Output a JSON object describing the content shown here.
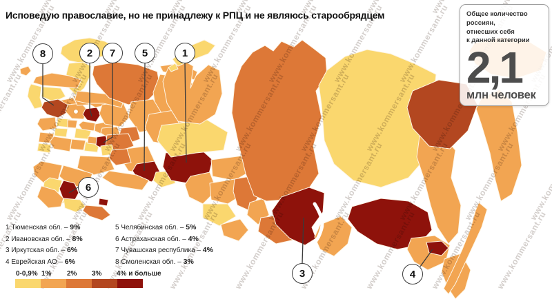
{
  "title": "Исповедую православие, но не принадлежу к РПЦ и не являюсь старообрядцем",
  "watermark": "www.kommersant.ru",
  "info_box": {
    "caption": "Общее количество россиян,\nотнесших себя\nк данной категории",
    "value": "2,1",
    "unit": "млн человек"
  },
  "palette": [
    "#FAD76E",
    "#F2A552",
    "#DD7837",
    "#B34720",
    "#8E120B"
  ],
  "callouts": [
    {
      "num": "1"
    },
    {
      "num": "2"
    },
    {
      "num": "3"
    },
    {
      "num": "4"
    },
    {
      "num": "5"
    },
    {
      "num": "6"
    },
    {
      "num": "7"
    },
    {
      "num": "8"
    }
  ],
  "ranked": [
    {
      "prefix": "1 Тюменская обл. – ",
      "value": "9%"
    },
    {
      "prefix": "2 Ивановская обл. – ",
      "value": "8%"
    },
    {
      "prefix": "3 Иркутская обл. – ",
      "value": "6%"
    },
    {
      "prefix": "4 Еврейская АО – ",
      "value": "6%"
    },
    {
      "prefix": "5 Челябинская обл. – ",
      "value": "5%"
    },
    {
      "prefix": "6 Астраханская обл. – ",
      "value": "4%"
    },
    {
      "prefix": "7 Чувашская республика – ",
      "value": "4%"
    },
    {
      "prefix": "8 Смоленская обл. – ",
      "value": "3%"
    }
  ],
  "scale": {
    "labels": [
      "0-0,9%",
      "1%",
      "2%",
      "3%",
      "4% и больше"
    ]
  },
  "map": {
    "regions": [
      {
        "id": "kaliningrad",
        "category": 1
      },
      {
        "id": "murmansk",
        "category": 0
      },
      {
        "id": "karelia",
        "category": 0
      },
      {
        "id": "leningrad",
        "category": 1
      },
      {
        "id": "novgorod",
        "category": 0
      },
      {
        "id": "pskov",
        "category": 0
      },
      {
        "id": "tver",
        "category": 1
      },
      {
        "id": "smolensk",
        "category": 3
      },
      {
        "id": "moscow_obl",
        "category": 1
      },
      {
        "id": "yaroslavl",
        "category": 1
      },
      {
        "id": "kostroma",
        "category": 1
      },
      {
        "id": "ivanovo",
        "category": 4
      },
      {
        "id": "vladimir",
        "category": 1
      },
      {
        "id": "nizhny",
        "category": 1
      },
      {
        "id": "kaluga",
        "category": 0
      },
      {
        "id": "bryansk",
        "category": 1
      },
      {
        "id": "orel",
        "category": 0
      },
      {
        "id": "tula",
        "category": 1
      },
      {
        "id": "ryazan",
        "category": 0
      },
      {
        "id": "kursk",
        "category": 1
      },
      {
        "id": "voronezh",
        "category": 1
      },
      {
        "id": "belgorod",
        "category": 0
      },
      {
        "id": "tambov",
        "category": 1
      },
      {
        "id": "penza",
        "category": 0
      },
      {
        "id": "mordovia",
        "category": 1
      },
      {
        "id": "chuvashia",
        "category": 4
      },
      {
        "id": "mari",
        "category": 1
      },
      {
        "id": "kirov",
        "category": 1
      },
      {
        "id": "vologda",
        "category": 1
      },
      {
        "id": "arkhangelsk",
        "category": 2
      },
      {
        "id": "komi",
        "category": 1
      },
      {
        "id": "nenets",
        "category": 1
      },
      {
        "id": "perm",
        "category": 1
      },
      {
        "id": "udmurtia",
        "category": 2
      },
      {
        "id": "tatarstan",
        "category": 2
      },
      {
        "id": "bashkortostan",
        "category": 1
      },
      {
        "id": "ulyanovsk",
        "category": 0
      },
      {
        "id": "samara",
        "category": 2
      },
      {
        "id": "saratov",
        "category": 1
      },
      {
        "id": "volgograd",
        "category": 1
      },
      {
        "id": "rostov",
        "category": 1
      },
      {
        "id": "astrakhan",
        "category": 4
      },
      {
        "id": "kalmykia",
        "category": 0
      },
      {
        "id": "krasnodar",
        "category": 1
      },
      {
        "id": "stavropol",
        "category": 0
      },
      {
        "id": "dagestan",
        "category": 2
      },
      {
        "id": "chechnya",
        "category": 4
      },
      {
        "id": "sverdlovsk",
        "category": 1
      },
      {
        "id": "chelyabinsk",
        "category": 4
      },
      {
        "id": "kurgan",
        "category": 0
      },
      {
        "id": "orenburg",
        "category": 1
      },
      {
        "id": "tyumen",
        "category": 4
      },
      {
        "id": "khanty",
        "category": 0
      },
      {
        "id": "yamal",
        "category": 1
      },
      {
        "id": "omsk",
        "category": 1
      },
      {
        "id": "tomsk",
        "category": 1
      },
      {
        "id": "novosibirsk",
        "category": 1
      },
      {
        "id": "altai_krai",
        "category": 0
      },
      {
        "id": "altai_rep",
        "category": 1
      },
      {
        "id": "kemerovo",
        "category": 2
      },
      {
        "id": "khakassia",
        "category": 1
      },
      {
        "id": "tuva",
        "category": 2
      },
      {
        "id": "krasnoyarsk",
        "category": 2
      },
      {
        "id": "yakutia",
        "category": 0
      },
      {
        "id": "irkutsk",
        "category": 4
      },
      {
        "id": "buryatia",
        "category": 1
      },
      {
        "id": "zabaikalye",
        "category": 4
      },
      {
        "id": "amur",
        "category": 1
      },
      {
        "id": "jewish",
        "category": 4
      },
      {
        "id": "primorye",
        "category": 1
      },
      {
        "id": "khabarovsk",
        "category": 1
      },
      {
        "id": "sakhalin",
        "category": 1
      },
      {
        "id": "magadan",
        "category": 3
      },
      {
        "id": "chukotka",
        "category": 1
      },
      {
        "id": "kamchatka",
        "category": 1
      },
      {
        "id": "novaya_zemlya",
        "category": 0
      },
      {
        "id": "novaya_zemlya2",
        "category": 0
      }
    ]
  },
  "chart_data": {
    "type": "heatmap",
    "subtype": "choropleth_map",
    "geography": "Россия, регионы",
    "title": "Исповедую православие, но не принадлежу к РПЦ и не являюсь старообрядцем",
    "total_annotation": {
      "caption": "Общее количество россиян, отнесших себя к данной категории",
      "value": "2,1",
      "unit": "млн человек"
    },
    "legend": {
      "position": "bottom-left",
      "bins": [
        "0-0,9%",
        "1%",
        "2%",
        "3%",
        "4% и больше"
      ],
      "colors": [
        "#FAD76E",
        "#F2A552",
        "#DD7837",
        "#B34720",
        "#8E120B"
      ]
    },
    "labeled_regions": [
      {
        "rank": 1,
        "name": "Тюменская обл.",
        "value": "9%"
      },
      {
        "rank": 2,
        "name": "Ивановская обл.",
        "value": "8%"
      },
      {
        "rank": 3,
        "name": "Иркутская обл.",
        "value": "6%"
      },
      {
        "rank": 4,
        "name": "Еврейская АО",
        "value": "6%"
      },
      {
        "rank": 5,
        "name": "Челябинская обл.",
        "value": "5%"
      },
      {
        "rank": 6,
        "name": "Астраханская обл.",
        "value": "4%"
      },
      {
        "rank": 7,
        "name": "Чувашская республика",
        "value": "4%"
      },
      {
        "rank": 8,
        "name": "Смоленская обл.",
        "value": "3%"
      }
    ]
  }
}
